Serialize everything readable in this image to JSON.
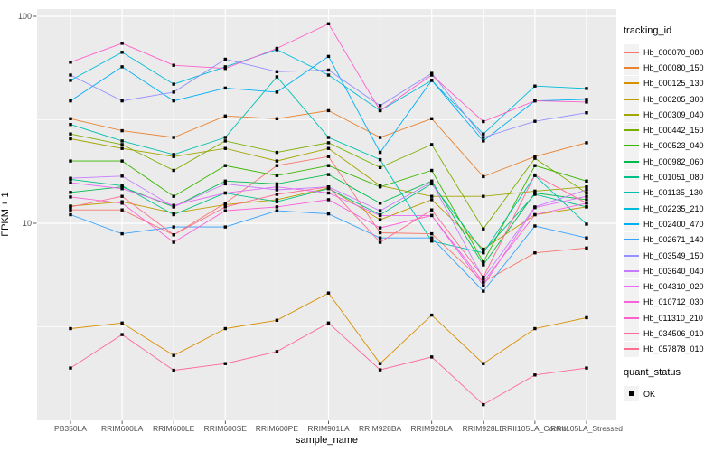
{
  "chart_data": {
    "type": "line",
    "title": "",
    "xlabel": "sample_name",
    "ylabel": "FPKM + 1",
    "y_scale": "log10",
    "y_ticks": [
      100,
      10
    ],
    "y_minor_gridlines": [
      31.62,
      3.162
    ],
    "ylim": [
      1.1,
      110
    ],
    "grid": "on",
    "panel_bg": "#EBEBEB",
    "grid_color": "#FFFFFF",
    "tick_color": "#333333",
    "point_shape": "filled-square",
    "point_color": "#000000",
    "legend_position": "right",
    "categories": [
      "PB350LA",
      "RRIM600LA",
      "RRIM600LE",
      "RRIM600SE",
      "RRIM600PE",
      "RRIM901LA",
      "RRIM928BA",
      "RRIM928LA",
      "RRIM928LE",
      "RRII105LA_Control",
      "RRII105LA_Stressed"
    ],
    "series": [
      {
        "name": "Hb_000070_080",
        "color": "#F8766D",
        "values": [
          11.6,
          11.6,
          8.8,
          12.5,
          19,
          21,
          9,
          8.9,
          5.2,
          7.2,
          7.6
        ]
      },
      {
        "name": "Hb_000080_150",
        "color": "#EA8331",
        "values": [
          32,
          28,
          26,
          33,
          32,
          35,
          26,
          32,
          16.8,
          21,
          24.5
        ]
      },
      {
        "name": "Hb_000125_130",
        "color": "#D89000",
        "values": [
          3.1,
          3.3,
          2.3,
          3.1,
          3.4,
          4.6,
          2.1,
          3.6,
          2.1,
          3.1,
          3.5
        ]
      },
      {
        "name": "Hb_000205_300",
        "color": "#C09B00",
        "values": [
          12.1,
          12.7,
          11.2,
          12.3,
          13,
          14.8,
          10.4,
          13,
          7.5,
          11,
          12
        ]
      },
      {
        "name": "Hb_000309_040",
        "color": "#A3A500",
        "values": [
          25.6,
          23,
          21,
          23,
          20,
          23,
          15.2,
          13.5,
          13.5,
          14.3,
          15
        ]
      },
      {
        "name": "Hb_000442_150",
        "color": "#7CAE00",
        "values": [
          27,
          24,
          18,
          25,
          22,
          24.5,
          18.6,
          24,
          9.4,
          20.6,
          14
        ]
      },
      {
        "name": "Hb_000523_040",
        "color": "#39B600",
        "values": [
          20,
          20,
          13.5,
          19,
          17,
          19,
          15,
          18,
          6.5,
          19,
          16
        ]
      },
      {
        "name": "Hb_000982_060",
        "color": "#00BB4E",
        "values": [
          14.1,
          15,
          12,
          16,
          15.5,
          17.2,
          12.5,
          16,
          6.3,
          14,
          13
        ]
      },
      {
        "name": "Hb_001051_080",
        "color": "#00C087",
        "values": [
          16.3,
          15.2,
          11,
          14,
          12.7,
          14.7,
          11,
          15.5,
          7.3,
          13.8,
          12
        ]
      },
      {
        "name": "Hb_001135_130",
        "color": "#00C0AF",
        "values": [
          30,
          25,
          21.5,
          26,
          51,
          26,
          20.3,
          8.2,
          7.2,
          17,
          9.9
        ]
      },
      {
        "name": "Hb_002235_210",
        "color": "#00BCD8",
        "values": [
          49,
          67,
          47,
          57,
          69,
          52,
          35,
          49,
          27,
          46,
          44.8
        ]
      },
      {
        "name": "Hb_002400_470",
        "color": "#00B0F6",
        "values": [
          39,
          57,
          39,
          45,
          43,
          64,
          22,
          49,
          25,
          39,
          39.7
        ]
      },
      {
        "name": "Hb_002671_140",
        "color": "#35A2FF",
        "values": [
          11,
          8.9,
          9.6,
          9.6,
          11.5,
          11.1,
          8.5,
          8.5,
          4.7,
          9.7,
          8.5
        ]
      },
      {
        "name": "Hb_003549_150",
        "color": "#9590FF",
        "values": [
          52,
          39,
          43,
          62,
          54,
          55,
          37,
          53,
          26,
          31.1,
          34.2
        ]
      },
      {
        "name": "Hb_003640_040",
        "color": "#C77CFF",
        "values": [
          16.5,
          16.9,
          12,
          15.5,
          14.5,
          15,
          11.5,
          15.8,
          5.4,
          12,
          14.5
        ]
      },
      {
        "name": "Hb_004310_020",
        "color": "#E76BF3",
        "values": [
          15.7,
          14.7,
          12.2,
          14,
          15,
          14,
          10.9,
          10.9,
          5.0,
          11.9,
          13.5
        ]
      },
      {
        "name": "Hb_010712_030",
        "color": "#FA62DB",
        "values": [
          13.4,
          12.5,
          8.1,
          11.5,
          12,
          13,
          9.5,
          10.9,
          5.2,
          11,
          12.5
        ]
      },
      {
        "name": "Hb_011310_210",
        "color": "#FF61CC",
        "values": [
          60,
          74,
          58,
          56,
          70,
          92,
          35,
          52,
          31,
          39,
          38.5
        ]
      },
      {
        "name": "Hb_034506_010",
        "color": "#FF68A1",
        "values": [
          2.0,
          2.9,
          1.95,
          2.1,
          2.4,
          3.3,
          1.96,
          2.26,
          1.33,
          1.85,
          2.0
        ]
      },
      {
        "name": "Hb_057878_010",
        "color": "#FF6C91",
        "values": [
          12,
          13.5,
          8.8,
          12,
          13.8,
          15,
          8.1,
          11.6,
          5.5,
          17.1,
          12.5
        ]
      }
    ],
    "legend": {
      "tracking_title": "tracking_id",
      "quant_title": "quant_status",
      "quant_items": [
        {
          "label": "OK",
          "marker": "black-square"
        }
      ]
    }
  }
}
